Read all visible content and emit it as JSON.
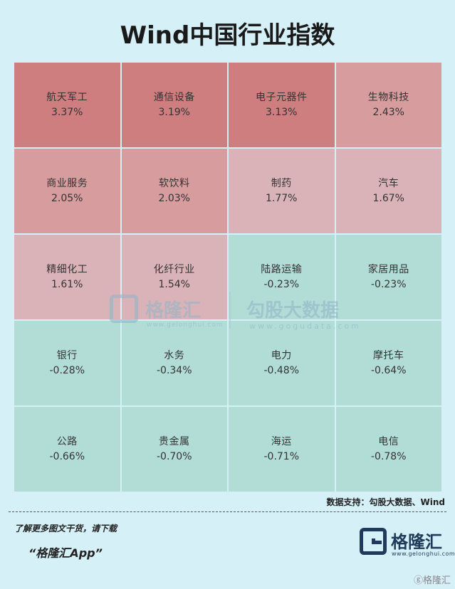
{
  "title": "Wind中国行业指数",
  "chart_data": {
    "type": "heatmap",
    "title": "Wind中国行业指数",
    "unit": "%",
    "items": [
      {
        "name": "航天军工",
        "value": 3.37,
        "label": "3.37%",
        "color": "#cf7e7f"
      },
      {
        "name": "通信设备",
        "value": 3.19,
        "label": "3.19%",
        "color": "#cf7e7f"
      },
      {
        "name": "电子元器件",
        "value": 3.13,
        "label": "3.13%",
        "color": "#cf7e7f"
      },
      {
        "name": "生物科技",
        "value": 2.43,
        "label": "2.43%",
        "color": "#d69c9e"
      },
      {
        "name": "商业服务",
        "value": 2.05,
        "label": "2.05%",
        "color": "#d69c9e"
      },
      {
        "name": "软饮料",
        "value": 2.03,
        "label": "2.03%",
        "color": "#d69c9e"
      },
      {
        "name": "制药",
        "value": 1.77,
        "label": "1.77%",
        "color": "#dab3b8"
      },
      {
        "name": "汽车",
        "value": 1.67,
        "label": "1.67%",
        "color": "#dab3b8"
      },
      {
        "name": "精细化工",
        "value": 1.61,
        "label": "1.61%",
        "color": "#dab3b8"
      },
      {
        "name": "化纤行业",
        "value": 1.54,
        "label": "1.54%",
        "color": "#dab3b8"
      },
      {
        "name": "陆路运输",
        "value": -0.23,
        "label": "-0.23%",
        "color": "#b2ddd7"
      },
      {
        "name": "家居用品",
        "value": -0.23,
        "label": "-0.23%",
        "color": "#b2ddd7"
      },
      {
        "name": "银行",
        "value": -0.28,
        "label": "-0.28%",
        "color": "#b2ddd7"
      },
      {
        "name": "水务",
        "value": -0.34,
        "label": "-0.34%",
        "color": "#b2ddd7"
      },
      {
        "name": "电力",
        "value": -0.48,
        "label": "-0.48%",
        "color": "#b2ddd7"
      },
      {
        "name": "摩托车",
        "value": -0.64,
        "label": "-0.64%",
        "color": "#b2ddd7"
      },
      {
        "name": "公路",
        "value": -0.66,
        "label": "-0.66%",
        "color": "#b2ddd7"
      },
      {
        "name": "贵金属",
        "value": -0.7,
        "label": "-0.70%",
        "color": "#b2ddd7"
      },
      {
        "name": "海运",
        "value": -0.71,
        "label": "-0.71%",
        "color": "#b2ddd7"
      },
      {
        "name": "电信",
        "value": -0.78,
        "label": "-0.78%",
        "color": "#b2ddd7"
      }
    ]
  },
  "watermark": {
    "brand_left": "格隆汇",
    "url_left": "www.gelonghui.com",
    "brand_right": "勾股大数据",
    "url_right": "www.gogudata.com"
  },
  "source": "数据支持：勾股大数据、Wind",
  "footer": {
    "download_text": "了解更多图文干货，请下载",
    "app_name": "“格隆汇App”",
    "logo_text": "格隆汇",
    "logo_url": "www.gelonghui.com",
    "corner_mark": "ⓖ格隆汇"
  }
}
